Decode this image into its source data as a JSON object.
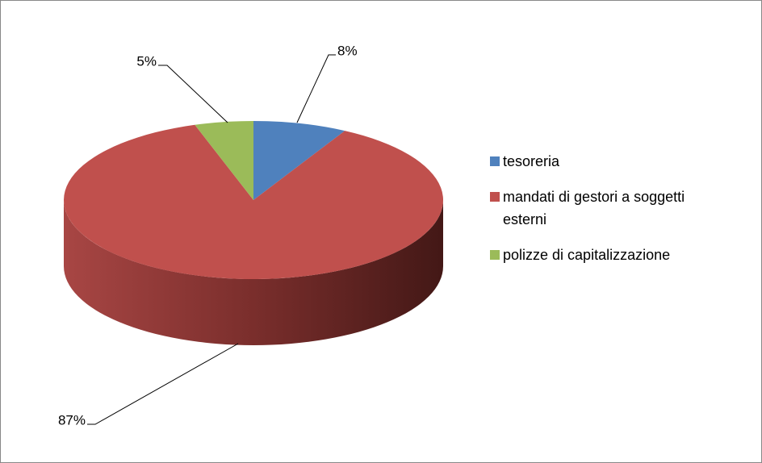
{
  "chart_data": {
    "type": "pie",
    "categories": [
      "tesoreria",
      "mandati di gestori a soggetti esterni",
      "polizze di capitalizzazione"
    ],
    "values": [
      8,
      87,
      5
    ],
    "value_labels": [
      "8%",
      "87%",
      "5%"
    ],
    "colors": [
      "#4f81bd",
      "#c0504d",
      "#9bbb59"
    ],
    "legend": "right"
  }
}
